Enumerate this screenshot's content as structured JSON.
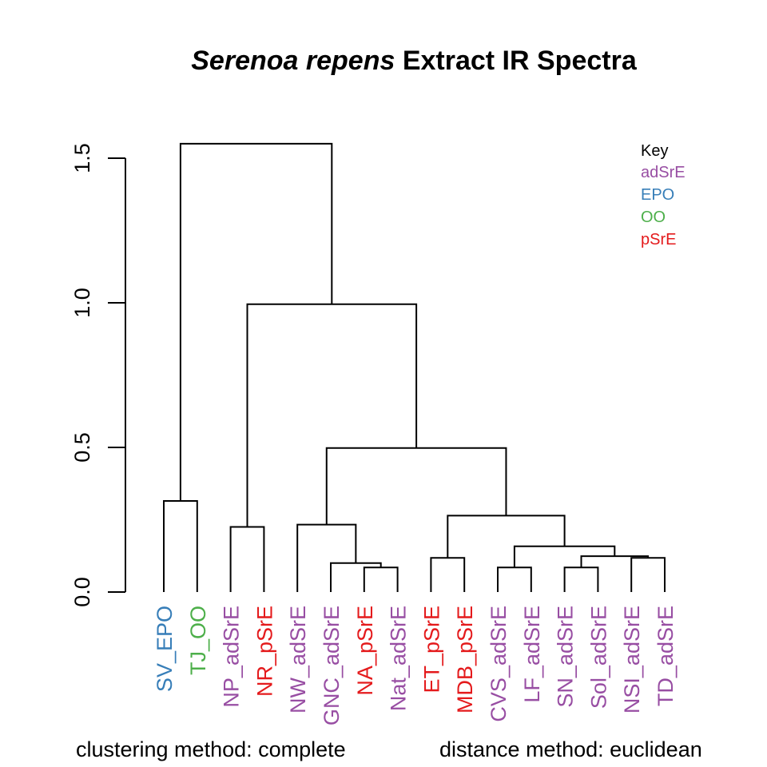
{
  "chart_data": {
    "type": "dendrogram",
    "title_italic": "Serenoa repens",
    "title_rest": " Extract IR Spectra",
    "xlabel": "",
    "ylabel": "",
    "ylim": [
      0,
      1.55
    ],
    "yticks": [
      0.0,
      0.5,
      1.0,
      1.5
    ],
    "ytick_labels": [
      "0.0",
      "0.5",
      "1.0",
      "1.5"
    ],
    "leaves": [
      {
        "label": "SV_EPO",
        "group": "EPO"
      },
      {
        "label": "TJ_OO",
        "group": "OO"
      },
      {
        "label": "NP_adSrE",
        "group": "adSrE"
      },
      {
        "label": "NR_pSrE",
        "group": "pSrE"
      },
      {
        "label": "NW_adSrE",
        "group": "adSrE"
      },
      {
        "label": "GNC_adSrE",
        "group": "adSrE"
      },
      {
        "label": "NA_pSrE",
        "group": "pSrE"
      },
      {
        "label": "Nat_adSrE",
        "group": "adSrE"
      },
      {
        "label": "ET_pSrE",
        "group": "pSrE"
      },
      {
        "label": "MDB_pSrE",
        "group": "pSrE"
      },
      {
        "label": "CVS_adSrE",
        "group": "adSrE"
      },
      {
        "label": "LF_adSrE",
        "group": "adSrE"
      },
      {
        "label": "SN_adSrE",
        "group": "adSrE"
      },
      {
        "label": "Sol_adSrE",
        "group": "adSrE"
      },
      {
        "label": "NSI_adSrE",
        "group": "adSrE"
      },
      {
        "label": "TD_adSrE",
        "group": "adSrE"
      }
    ],
    "merges": [
      {
        "name": "m1",
        "a": 0,
        "b": 1,
        "height": 0.315
      },
      {
        "name": "m2",
        "a": 2,
        "b": 3,
        "height": 0.225
      },
      {
        "name": "m3",
        "a": 6,
        "b": 7,
        "height": 0.085
      },
      {
        "name": "m4",
        "a": 5,
        "b": "m3",
        "height": 0.1
      },
      {
        "name": "m5",
        "a": 4,
        "b": "m4",
        "height": 0.233
      },
      {
        "name": "m6",
        "a": 8,
        "b": 9,
        "height": 0.118
      },
      {
        "name": "m7",
        "a": 10,
        "b": 11,
        "height": 0.085
      },
      {
        "name": "m8",
        "a": 12,
        "b": 13,
        "height": 0.085
      },
      {
        "name": "m9",
        "a": 14,
        "b": 15,
        "height": 0.118
      },
      {
        "name": "m10",
        "a": "m8",
        "b": "m9",
        "height": 0.124
      },
      {
        "name": "m11",
        "a": "m7",
        "b": "m10",
        "height": 0.158
      },
      {
        "name": "m12",
        "a": "m6",
        "b": "m11",
        "height": 0.264
      },
      {
        "name": "m13",
        "a": "m5",
        "b": "m12",
        "height": 0.498
      },
      {
        "name": "m14",
        "a": "m2",
        "b": "m13",
        "height": 0.995
      },
      {
        "name": "m15",
        "a": "m1",
        "b": "m14",
        "height": 1.55
      }
    ],
    "legend": {
      "title": "Key",
      "placement": "top-right",
      "entries": [
        {
          "label": "adSrE",
          "color": "#984EA3"
        },
        {
          "label": "EPO",
          "color": "#377EB8"
        },
        {
          "label": "OO",
          "color": "#4DAF4A"
        },
        {
          "label": "pSrE",
          "color": "#E41A1C"
        }
      ]
    },
    "group_colors": {
      "adSrE": "#984EA3",
      "EPO": "#377EB8",
      "OO": "#4DAF4A",
      "pSrE": "#E41A1C"
    },
    "footer_left": "clustering method: complete",
    "footer_right": "distance method: euclidean"
  }
}
